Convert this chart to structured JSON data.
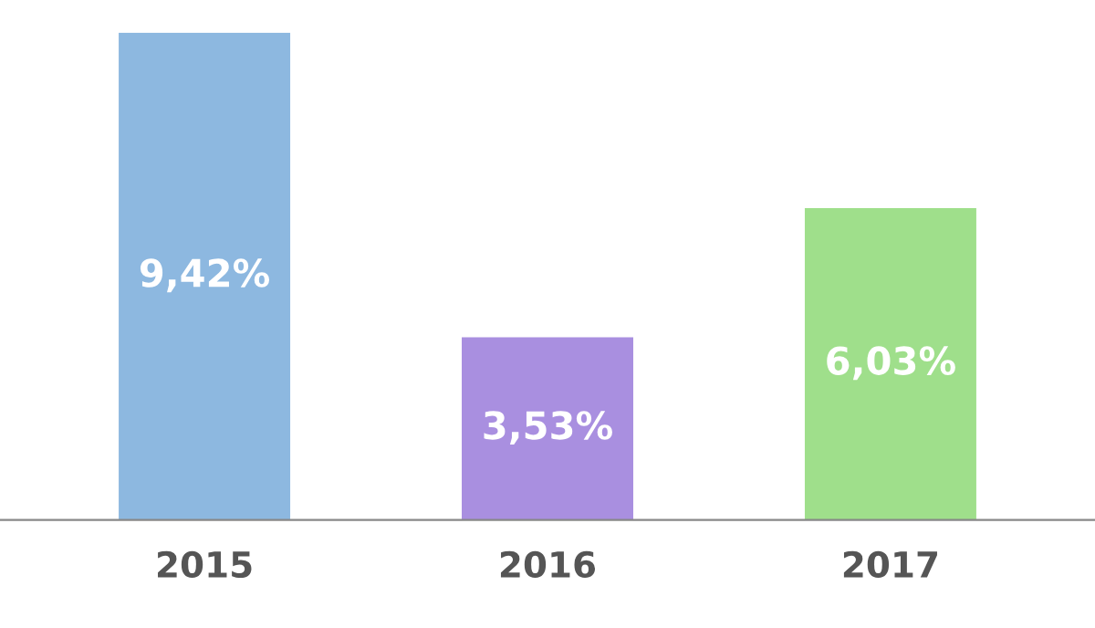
{
  "chart_data": {
    "type": "bar",
    "categories": [
      "2015",
      "2016",
      "2017"
    ],
    "values": [
      9.42,
      3.53,
      6.03
    ],
    "colors": [
      "#8db8e0",
      "#a98fe0",
      "#9fdf8b"
    ],
    "value_labels": [
      "9,42%",
      "3,53%",
      "6,03%"
    ],
    "grid": false,
    "legend": false
  }
}
